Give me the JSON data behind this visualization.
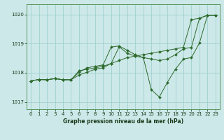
{
  "title": "Graphe pression niveau de la mer (hPa)",
  "xlim": [
    -0.5,
    23.5
  ],
  "ylim": [
    1016.75,
    1020.35
  ],
  "yticks": [
    1017,
    1018,
    1019,
    1020
  ],
  "xticks": [
    0,
    1,
    2,
    3,
    4,
    5,
    6,
    7,
    8,
    9,
    10,
    11,
    12,
    13,
    14,
    15,
    16,
    17,
    18,
    19,
    20,
    21,
    22,
    23
  ],
  "background_color": "#cce8e8",
  "grid_color": "#99cccc",
  "line_color": "#2d6a2d",
  "line1": [
    1017.72,
    1017.77,
    1017.76,
    1017.8,
    1017.76,
    1017.76,
    1017.92,
    1018.02,
    1018.12,
    1018.17,
    1018.32,
    1018.42,
    1018.52,
    1018.57,
    1018.62,
    1018.67,
    1018.72,
    1018.77,
    1018.82,
    1018.87,
    1019.82,
    1019.87,
    1019.97,
    1019.97
  ],
  "line2": [
    1017.72,
    1017.77,
    1017.76,
    1017.8,
    1017.76,
    1017.76,
    1018.02,
    1018.17,
    1018.22,
    1018.27,
    1018.88,
    1018.92,
    1018.77,
    1018.62,
    1018.52,
    1017.42,
    1017.17,
    1017.67,
    1018.12,
    1018.47,
    1018.52,
    1019.02,
    1019.97,
    1019.97
  ],
  "line3": [
    1017.72,
    1017.77,
    1017.76,
    1017.8,
    1017.76,
    1017.76,
    1018.07,
    1018.12,
    1018.17,
    1018.22,
    1018.32,
    1018.89,
    1018.67,
    1018.57,
    1018.52,
    1018.47,
    1018.42,
    1018.47,
    1018.62,
    1018.82,
    1018.87,
    1019.87,
    1019.97,
    1019.97
  ]
}
